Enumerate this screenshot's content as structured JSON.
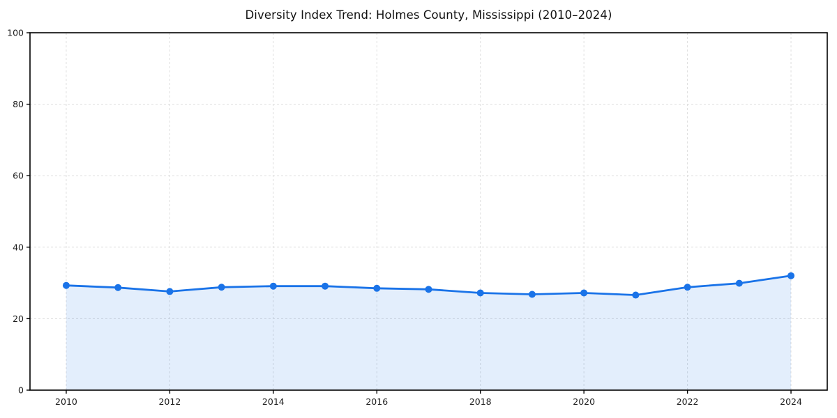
{
  "page": {
    "background": "#ffffff"
  },
  "chart_data": {
    "type": "area",
    "title": "Diversity Index Trend: Holmes County, Mississippi (2010–2024)",
    "x": [
      2010,
      2011,
      2012,
      2013,
      2014,
      2015,
      2016,
      2017,
      2018,
      2019,
      2020,
      2021,
      2022,
      2023,
      2024
    ],
    "series": [
      {
        "name": "Diversity Index",
        "values": [
          29.3,
          28.7,
          27.6,
          28.8,
          29.1,
          29.1,
          28.5,
          28.2,
          27.2,
          26.8,
          27.2,
          26.6,
          28.8,
          29.9,
          32.0
        ]
      }
    ],
    "xlabel": "",
    "ylabel": "",
    "xlim": [
      2009.3,
      2024.7
    ],
    "ylim": [
      0,
      100
    ],
    "xticks": [
      2010,
      2012,
      2014,
      2016,
      2018,
      2020,
      2022,
      2024
    ],
    "yticks": [
      0,
      20,
      40,
      60,
      80,
      100
    ],
    "grid": true,
    "grid_style": "dashed",
    "legend": "none",
    "marker": "circle",
    "colors": {
      "line": "#1a73e8",
      "marker": "#1a73e8",
      "fill": "rgba(26,115,232,0.12)",
      "grid": "#dedede",
      "spine": "#000000",
      "tick_text": "#1c1c1c",
      "title_text": "#111111"
    }
  }
}
